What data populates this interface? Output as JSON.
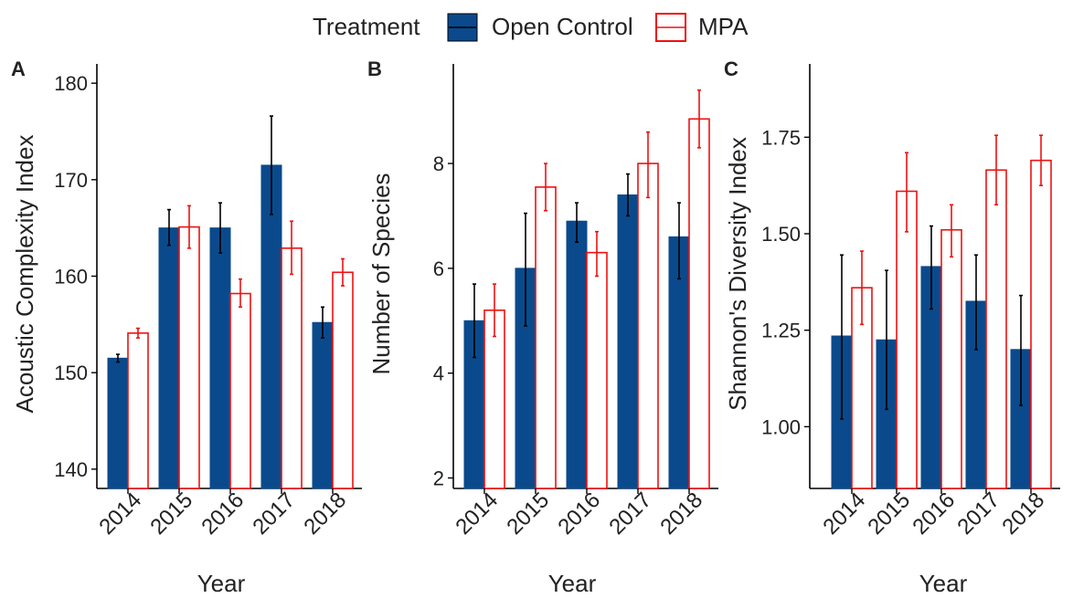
{
  "legend": {
    "title": "Treatment",
    "entries": [
      "Open Control",
      "MPA"
    ]
  },
  "colors": {
    "open_control_fill": "#0a4a8c",
    "mpa_stroke": "#ee1111",
    "axis": "#000000",
    "text": "#222222"
  },
  "chart_data": [
    {
      "type": "bar",
      "panel_label": "A",
      "xlabel": "Year",
      "ylabel": "Acoustic Complexity Index",
      "categories": [
        "2014",
        "2015",
        "2016",
        "2017",
        "2018"
      ],
      "ylim": [
        138,
        182
      ],
      "yticks": [
        140,
        150,
        160,
        170,
        180
      ],
      "grid": false,
      "legend_placement": "top",
      "series": [
        {
          "name": "Open Control",
          "values": [
            151.5,
            165.0,
            165.0,
            171.5,
            155.2
          ],
          "error_low": [
            151.1,
            163.2,
            162.4,
            166.4,
            153.6
          ],
          "error_high": [
            151.9,
            166.9,
            167.6,
            176.6,
            156.8
          ]
        },
        {
          "name": "MPA",
          "values": [
            154.1,
            165.1,
            158.2,
            162.9,
            160.4
          ],
          "error_low": [
            153.6,
            162.9,
            156.8,
            160.2,
            159.0
          ],
          "error_high": [
            154.6,
            167.3,
            159.7,
            165.7,
            161.8
          ]
        }
      ]
    },
    {
      "type": "bar",
      "panel_label": "B",
      "xlabel": "Year",
      "ylabel": "Number of Species",
      "categories": [
        "2014",
        "2015",
        "2016",
        "2017",
        "2018"
      ],
      "ylim": [
        1.8,
        9.9
      ],
      "yticks": [
        2,
        4,
        6,
        8
      ],
      "grid": false,
      "series": [
        {
          "name": "Open Control",
          "values": [
            5.0,
            6.0,
            6.9,
            7.4,
            6.6
          ],
          "error_low": [
            4.3,
            4.9,
            6.5,
            7.0,
            5.8
          ],
          "error_high": [
            5.7,
            7.05,
            7.25,
            7.8,
            7.25
          ]
        },
        {
          "name": "MPA",
          "values": [
            5.2,
            7.55,
            6.3,
            8.0,
            8.85
          ],
          "error_low": [
            4.7,
            7.1,
            5.85,
            7.35,
            8.3
          ],
          "error_high": [
            5.7,
            8.0,
            6.7,
            8.6,
            9.4
          ]
        }
      ]
    },
    {
      "type": "bar",
      "panel_label": "C",
      "xlabel": "Year",
      "ylabel": "Shannon's Diversity Index",
      "categories": [
        "2014",
        "2015",
        "2016",
        "2017",
        "2018"
      ],
      "ylim": [
        0.84,
        1.94
      ],
      "yticks": [
        "1.00",
        "1.25",
        "1.50",
        "1.75"
      ],
      "grid": false,
      "series": [
        {
          "name": "Open Control",
          "values": [
            1.235,
            1.225,
            1.415,
            1.325,
            1.2
          ],
          "error_low": [
            1.02,
            1.045,
            1.305,
            1.2,
            1.055
          ],
          "error_high": [
            1.445,
            1.405,
            1.52,
            1.445,
            1.34
          ]
        },
        {
          "name": "MPA",
          "values": [
            1.36,
            1.61,
            1.51,
            1.665,
            1.69
          ],
          "error_low": [
            1.265,
            1.505,
            1.44,
            1.575,
            1.625
          ],
          "error_high": [
            1.455,
            1.71,
            1.575,
            1.755,
            1.755
          ]
        }
      ]
    }
  ]
}
